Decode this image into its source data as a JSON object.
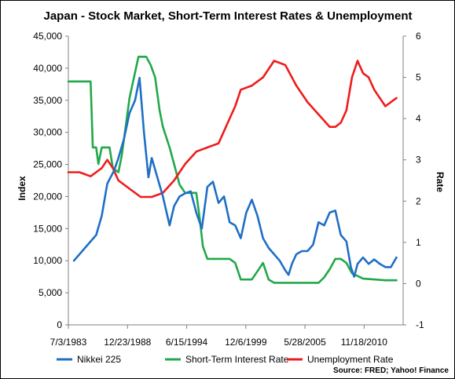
{
  "chart_data": {
    "type": "line",
    "title": "Japan - Stock Market, Short-Term Interest Rates & Unemployment",
    "ylabel": "Index",
    "y2label": "Rate",
    "source": "Source: FRED; Yahoo! Finance",
    "legend_position": "bottom",
    "grid": false,
    "x_ticks": [
      "7/3/1983",
      "12/23/1988",
      "6/15/1994",
      "12/6/1999",
      "5/28/2005",
      "11/18/2010"
    ],
    "xlim": [
      1983.5,
      2013.6
    ],
    "ylim": [
      0,
      45000
    ],
    "y_ticks": [
      0,
      5000,
      10000,
      15000,
      20000,
      25000,
      30000,
      35000,
      40000,
      45000
    ],
    "y_tick_labels": [
      "0",
      "5,000",
      "10,000",
      "15,000",
      "20,000",
      "25,000",
      "30,000",
      "35,000",
      "40,000",
      "45,000"
    ],
    "y2lim": [
      -1,
      6
    ],
    "y2_ticks": [
      -1,
      0,
      1,
      2,
      3,
      4,
      5,
      6
    ],
    "y2_tick_labels": [
      "-1",
      "0",
      "1",
      "2",
      "3",
      "4",
      "5",
      "6"
    ],
    "series": [
      {
        "name": "Nikkei 225",
        "axis": "left",
        "color": "#1f6fc6",
        "x": [
          1984.0,
          1985.0,
          1986.0,
          1986.5,
          1987.0,
          1987.6,
          1988.0,
          1988.5,
          1989.0,
          1989.5,
          1989.9,
          1990.3,
          1990.7,
          1991.0,
          1991.5,
          1992.0,
          1992.6,
          1993.0,
          1993.5,
          1994.0,
          1994.5,
          1995.0,
          1995.5,
          1996.0,
          1996.5,
          1997.0,
          1997.5,
          1998.0,
          1998.5,
          1999.0,
          1999.5,
          2000.0,
          2000.5,
          2001.0,
          2001.5,
          2002.0,
          2002.5,
          2003.0,
          2003.3,
          2003.6,
          2004.0,
          2004.5,
          2005.0,
          2005.5,
          2006.0,
          2006.5,
          2007.0,
          2007.5,
          2008.0,
          2008.5,
          2008.9,
          2009.2,
          2009.5,
          2010.0,
          2010.5,
          2011.0,
          2011.5,
          2012.0,
          2012.5,
          2013.0
        ],
        "values": [
          10000,
          12000,
          14000,
          17000,
          22000,
          24000,
          26000,
          29000,
          33000,
          35000,
          38500,
          30000,
          23000,
          26000,
          23000,
          20000,
          15500,
          18500,
          20000,
          20500,
          20800,
          17500,
          15000,
          21500,
          22300,
          19000,
          20000,
          16000,
          15500,
          13500,
          17500,
          19500,
          17000,
          13500,
          12000,
          11000,
          10000,
          8500,
          7800,
          9500,
          11000,
          11500,
          11500,
          12500,
          16000,
          15500,
          17500,
          17800,
          14000,
          13000,
          9000,
          7500,
          9500,
          10500,
          9500,
          10200,
          9500,
          9000,
          9000,
          10500
        ]
      },
      {
        "name": "Short-Term Interest Rate",
        "axis": "right",
        "color": "#22a84a",
        "x": [
          1983.5,
          1985.5,
          1985.7,
          1986.0,
          1986.2,
          1986.5,
          1987.2,
          1987.5,
          1988.0,
          1988.3,
          1988.7,
          1989.0,
          1989.4,
          1989.8,
          1990.0,
          1990.5,
          1990.9,
          1991.3,
          1991.7,
          1992.0,
          1992.6,
          1993.0,
          1993.5,
          1994.0,
          1995.0,
          1995.3,
          1995.6,
          1996.0,
          1998.0,
          1998.5,
          1999.0,
          2000.0,
          2000.5,
          2001.0,
          2001.5,
          2002.0,
          2006.0,
          2006.5,
          2007.0,
          2007.5,
          2008.0,
          2008.5,
          2009.0,
          2010.0,
          2012.0,
          2013.0
        ],
        "values": [
          4.9,
          4.9,
          3.3,
          3.3,
          2.9,
          3.3,
          3.3,
          2.8,
          2.7,
          3.1,
          3.9,
          4.5,
          5.0,
          5.5,
          5.5,
          5.5,
          5.3,
          5.0,
          4.2,
          3.8,
          3.3,
          2.9,
          2.4,
          2.2,
          2.2,
          1.6,
          0.9,
          0.6,
          0.6,
          0.5,
          0.1,
          0.1,
          0.3,
          0.5,
          0.1,
          0.02,
          0.02,
          0.15,
          0.35,
          0.6,
          0.6,
          0.5,
          0.25,
          0.12,
          0.08,
          0.08
        ]
      },
      {
        "name": "Unemployment Rate",
        "axis": "right",
        "color": "#ee1c1c",
        "x": [
          1983.5,
          1984.5,
          1985.5,
          1986.5,
          1987.0,
          1987.5,
          1988.0,
          1989.0,
          1990.0,
          1991.0,
          1992.0,
          1993.0,
          1994.0,
          1995.0,
          1996.0,
          1997.0,
          1998.0,
          1998.5,
          1999.0,
          2000.0,
          2001.0,
          2002.0,
          2003.0,
          2004.0,
          2005.0,
          2006.0,
          2007.0,
          2007.5,
          2008.0,
          2008.5,
          2009.0,
          2009.5,
          2010.0,
          2010.5,
          2011.0,
          2011.5,
          2012.0,
          2012.5,
          2013.0
        ],
        "values": [
          2.7,
          2.7,
          2.6,
          2.8,
          3.0,
          2.8,
          2.5,
          2.3,
          2.1,
          2.1,
          2.2,
          2.5,
          2.9,
          3.2,
          3.3,
          3.4,
          4.0,
          4.3,
          4.7,
          4.8,
          5.0,
          5.4,
          5.3,
          4.8,
          4.4,
          4.1,
          3.8,
          3.8,
          3.9,
          4.2,
          5.0,
          5.4,
          5.1,
          5.0,
          4.7,
          4.5,
          4.3,
          4.4,
          4.5
        ]
      }
    ]
  }
}
